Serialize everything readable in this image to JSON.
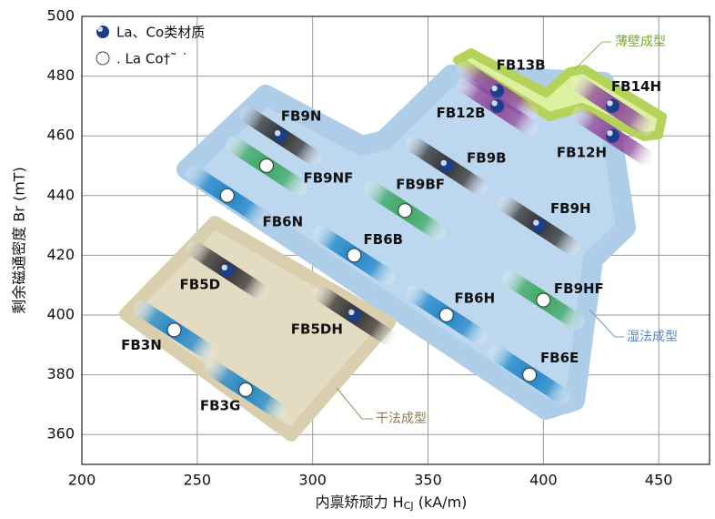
{
  "chart_data": {
    "type": "scatter",
    "xlabel": [
      "内禀矫顽力 H",
      "CJ",
      " (kA/m)"
    ],
    "ylabel": "剩余磁通密度 Br (mT)",
    "xlim": [
      200,
      472
    ],
    "ylim": [
      350,
      500
    ],
    "xticks": [
      200,
      250,
      300,
      350,
      400,
      450
    ],
    "yticks": [
      360,
      380,
      400,
      420,
      440,
      460,
      480,
      500
    ],
    "grid": true,
    "legend": "upper left",
    "annotations": [
      "薄壁成型",
      "湿法成型",
      "干法成型"
    ],
    "series": [
      {
        "name": "La、Co类材质",
        "marker": "filled",
        "marker_color": "#1b3f8a",
        "labels": [
          "FB13B",
          "FB12B",
          "FB14H",
          "FB12H",
          "FB9N",
          "FB9B",
          "FB9H",
          "FB5D",
          "FB5DH"
        ],
        "x": [
          380,
          380,
          430,
          430,
          286,
          358,
          398,
          263,
          318
        ],
        "values": [
          475,
          470,
          470,
          460,
          460,
          450,
          430,
          415,
          400
        ],
        "bar_colors": [
          "#8e4a9a",
          "#8e4a9a",
          "#8e4a9a",
          "#8e4a9a",
          "#333333",
          "#333333",
          "#333333",
          "#333333",
          "#333333"
        ]
      },
      {
        "name": ". La Co†˜ ˙",
        "marker": "open",
        "marker_color": "#ffffff",
        "labels": [
          "FB9NF",
          "FB9BF",
          "FB6N",
          "FB6B",
          "FB9HF",
          "FB6H",
          "FB3N",
          "FB6E",
          "FB3G"
        ],
        "x": [
          280,
          340,
          263,
          318,
          400,
          358,
          240,
          394,
          271
        ],
        "values": [
          450,
          435,
          440,
          420,
          405,
          400,
          395,
          380,
          375
        ],
        "bar_colors": [
          "#3aa860",
          "#3aa860",
          "#1f86c8",
          "#1f86c8",
          "#3aa860",
          "#1f86c8",
          "#1f86c8",
          "#1f86c8",
          "#1f86c8"
        ]
      }
    ]
  }
}
